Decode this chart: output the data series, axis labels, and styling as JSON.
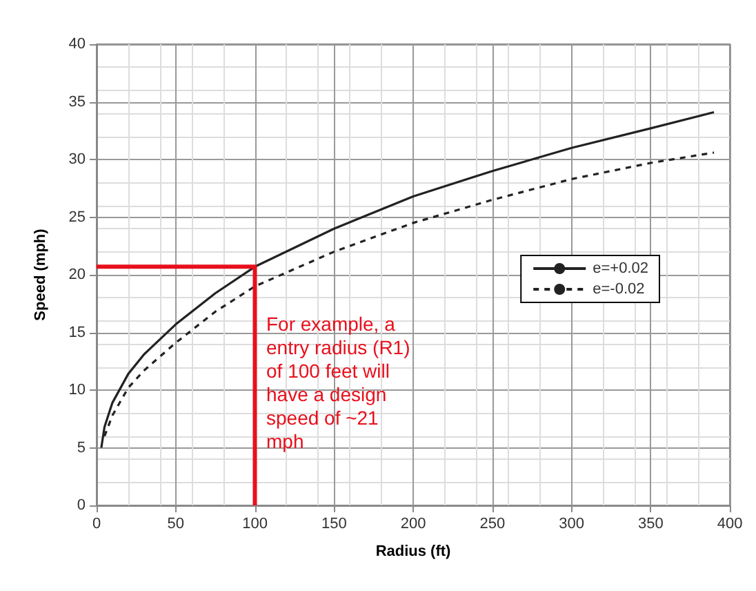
{
  "chart_data": {
    "type": "line",
    "xlabel": "Radius (ft)",
    "ylabel": "Speed (mph)",
    "xlim": [
      0,
      400
    ],
    "xticks": [
      0,
      50,
      100,
      150,
      200,
      250,
      300,
      350,
      400
    ],
    "ylim": [
      0,
      40
    ],
    "yticks": [
      0,
      5,
      10,
      15,
      20,
      25,
      30,
      35,
      40
    ],
    "grid": true,
    "legend": "right",
    "marker": "none",
    "series": [
      {
        "name": "e=+0.02",
        "color": "#222222",
        "line_style": "solid",
        "x": [
          3,
          5,
          10,
          20,
          30,
          50,
          75,
          100,
          150,
          200,
          250,
          300,
          350,
          390
        ],
        "values": [
          5,
          6.8,
          8.9,
          11.4,
          13.1,
          15.7,
          18.4,
          20.7,
          24.0,
          26.8,
          29.0,
          31.0,
          32.7,
          34.1
        ]
      },
      {
        "name": "e=-0.02",
        "color": "#222222",
        "line_style": "dashed",
        "x": [
          5,
          10,
          20,
          30,
          50,
          75,
          100,
          150,
          200,
          250,
          300,
          350,
          390
        ],
        "values": [
          6.0,
          7.8,
          10.2,
          11.7,
          14.1,
          16.8,
          19.0,
          22.0,
          24.5,
          26.5,
          28.3,
          29.7,
          30.6
        ]
      },
      {
        "color": "#e8101c",
        "line_style": "solid",
        "x": [
          0,
          100,
          100
        ],
        "values": [
          20.7,
          20.7,
          0
        ]
      }
    ],
    "annotations": [
      "For example, a\nentry radius (R1)\nof 100 feet will\nhave a design\nspeed of ~21\nmph"
    ]
  }
}
